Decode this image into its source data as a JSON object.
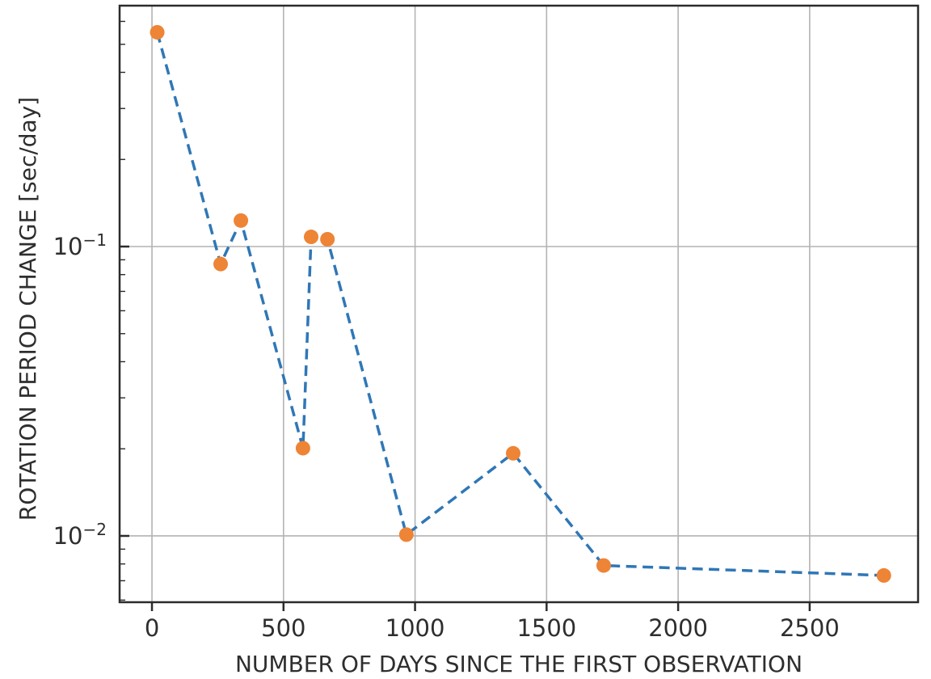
{
  "figure": {
    "background": "#ffffff"
  },
  "chart_data": {
    "type": "line",
    "title": "",
    "xlabel": "NUMBER OF DAYS SINCE THE FIRST OBSERVATION",
    "ylabel": "ROTATION PERIOD CHANGE [sec/day]",
    "x": [
      20,
      261,
      338,
      574,
      605,
      667,
      967,
      1373,
      1717,
      2782
    ],
    "y": [
      0.55,
      0.087,
      0.123,
      0.0201,
      0.108,
      0.106,
      0.0101,
      0.0193,
      0.0079,
      0.0073
    ],
    "series_name": "rotation period change",
    "xscale": "linear",
    "yscale": "log",
    "xlim": [
      -123,
      2912
    ],
    "ylim": [
      0.0059,
      0.68
    ],
    "grid": true,
    "legend": "none",
    "x_ticks": [
      0,
      500,
      1000,
      1500,
      2000,
      2500
    ],
    "x_tick_labels": [
      "0",
      "500",
      "1000",
      "1500",
      "2000",
      "2500"
    ],
    "y_ticks": [
      {
        "value": 0.1,
        "mantissa": "10",
        "exponent": "−1"
      },
      {
        "value": 0.01,
        "mantissa": "10",
        "exponent": "−2"
      }
    ],
    "line_color": "#2f77b6",
    "line_style": "dashed",
    "marker": "circle",
    "marker_color": "#ee8435",
    "grid_color": "#b3b3b3",
    "spine_color": "#2b2b2b",
    "text_color": "#2e2e2e"
  }
}
